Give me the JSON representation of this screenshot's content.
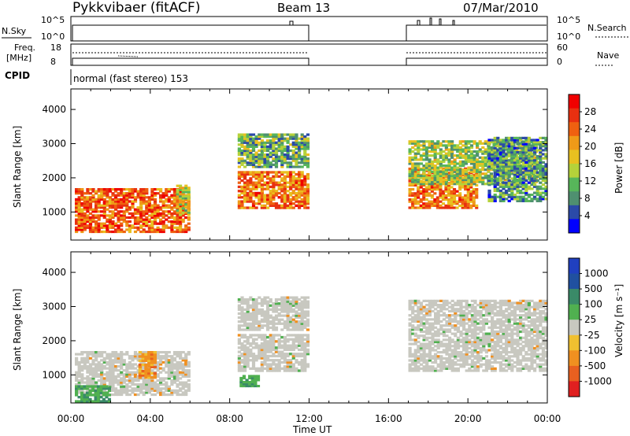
{
  "header": {
    "station": "Pykkvibaer (fitACF)",
    "beam": "Beam 13",
    "date": "07/Mar/2010"
  },
  "panels": {
    "nsky_label": "N.Sky",
    "nsky_ticks": [
      "10^5",
      "10^0"
    ],
    "nsearch_label": "N.Search",
    "nsearch_ticks": [
      "10^5",
      "10^0"
    ],
    "freq_label_1": "Freq.",
    "freq_label_2": "[MHz]",
    "freq_ticks": [
      "18",
      "8"
    ],
    "nave_label": "Nave",
    "nave_ticks": [
      "60",
      "0"
    ],
    "cpid_label": "CPID",
    "cpid_text": "normal (fast stereo) 153"
  },
  "colors": {
    "power": [
      "#0000ff",
      "#2b4aa8",
      "#4f9070",
      "#57b65a",
      "#b5d23a",
      "#e8c020",
      "#ef9a18",
      "#ef6010",
      "#e83010",
      "#f00000"
    ],
    "velocity": [
      "#2040c0",
      "#2050a0",
      "#3a8a68",
      "#50b050",
      "#c8c8c0",
      "#f0c030",
      "#f09020",
      "#e86020",
      "#e02020"
    ]
  },
  "chart_data": [
    {
      "type": "line",
      "title": "N.Sky / N.Search",
      "x": [
        "00:00",
        "12:00",
        "17:00",
        "24:00"
      ],
      "series": [
        {
          "values": [
            100000.0,
            100000.0,
            100000.0,
            100000.0
          ]
        }
      ],
      "ylim_ticks": [
        "10^0",
        "10^5"
      ],
      "gaps": [
        [
          "12:00",
          "17:00"
        ]
      ]
    },
    {
      "type": "line",
      "title": "Freq. / Nave",
      "x": [
        "00:00",
        "12:00",
        "17:00",
        "24:00"
      ],
      "series": [
        {
          "values": [
            10,
            10,
            10,
            10
          ]
        }
      ],
      "ylim": [
        8,
        18
      ],
      "gaps": [
        [
          "12:00",
          "17:00"
        ]
      ]
    },
    {
      "type": "heatmap",
      "ylabel": "Slant Range [km]",
      "xlabel": "Time UT",
      "x_ticks": [
        "00:00",
        "04:00",
        "08:00",
        "12:00",
        "16:00",
        "20:00",
        "00:00"
      ],
      "y_ticks": [
        "1000",
        "2000",
        "3000",
        "4000"
      ],
      "ylim": [
        180,
        4600
      ],
      "colorbar_label": "Power [dB]",
      "colorbar_ticks": [
        "4",
        "8",
        "12",
        "16",
        "20",
        "24",
        "28"
      ],
      "clim": [
        0,
        30
      ],
      "blobs": [
        {
          "t0": 0.2,
          "t1": 6.0,
          "r0": 400,
          "r1": 1700,
          "v": 24
        },
        {
          "t0": 5.3,
          "t1": 6.0,
          "r0": 900,
          "r1": 1800,
          "v": 15
        },
        {
          "t0": 8.4,
          "t1": 12.0,
          "r0": 1100,
          "r1": 2200,
          "v": 22
        },
        {
          "t0": 8.4,
          "t1": 12.0,
          "r0": 2300,
          "r1": 3300,
          "v": 10
        },
        {
          "t0": 17.0,
          "t1": 20.5,
          "r0": 1100,
          "r1": 2300,
          "v": 22
        },
        {
          "t0": 17.0,
          "t1": 23.5,
          "r0": 1800,
          "r1": 3100,
          "v": 12
        },
        {
          "t0": 21.0,
          "t1": 24.0,
          "r0": 1300,
          "r1": 3200,
          "v": 8
        }
      ]
    },
    {
      "type": "heatmap",
      "ylabel": "Slant Range [km]",
      "xlabel": "Time UT",
      "x_ticks": [
        "00:00",
        "04:00",
        "08:00",
        "12:00",
        "16:00",
        "20:00",
        "00:00"
      ],
      "y_ticks": [
        "1000",
        "2000",
        "3000",
        "4000"
      ],
      "ylim": [
        180,
        4600
      ],
      "colorbar_label": "Velocity [m s⁻¹]",
      "colorbar_ticks": [
        "1000",
        "500",
        "100",
        "25",
        "-25",
        "-100",
        "-500",
        "-1000"
      ],
      "blobs": [
        {
          "t0": 0.2,
          "t1": 6.0,
          "r0": 400,
          "r1": 1700,
          "v": 25
        },
        {
          "t0": 3.4,
          "t1": 4.3,
          "r0": 900,
          "r1": 1700,
          "v": -300
        },
        {
          "t0": 0.2,
          "t1": 2.0,
          "r0": 200,
          "r1": 700,
          "v": 300
        },
        {
          "t0": 8.4,
          "t1": 12.0,
          "r0": 1100,
          "r1": 2200,
          "v": 0
        },
        {
          "t0": 8.4,
          "t1": 12.0,
          "r0": 2300,
          "r1": 3300,
          "v": 0
        },
        {
          "t0": 8.5,
          "t1": 9.5,
          "r0": 650,
          "r1": 1000,
          "v": 100
        },
        {
          "t0": 17.0,
          "t1": 24.0,
          "r0": 1100,
          "r1": 3200,
          "v": 0
        }
      ]
    }
  ]
}
